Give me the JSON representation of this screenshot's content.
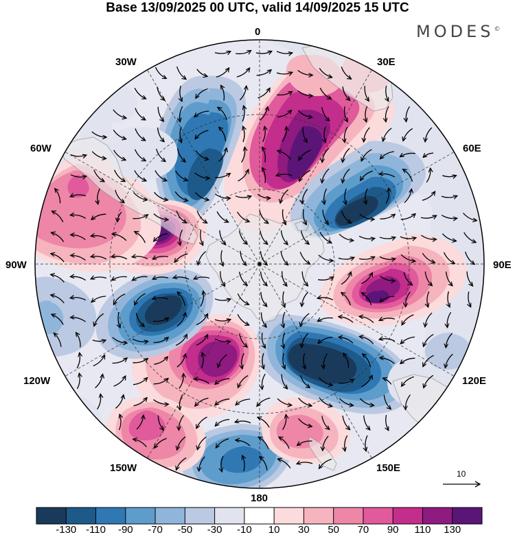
{
  "title": "Base 13/09/2025 00 UTC, valid 14/09/2025 15 UTC",
  "brand": {
    "name": "MODES",
    "mark": "©"
  },
  "longitude_labels": {
    "lon_0": "0",
    "lon_30e": "30E",
    "lon_60e": "60E",
    "lon_90e": "90E",
    "lon_120e": "120E",
    "lon_150e": "150E",
    "lon_180": "180",
    "lon_150w": "150W",
    "lon_120w": "120W",
    "lon_90w": "90W",
    "lon_60w": "60W",
    "lon_30w": "30W"
  },
  "reference_vector": {
    "label": "10"
  },
  "colorbar": {
    "colors": [
      "#1a3a5c",
      "#1d5a8a",
      "#2f78b3",
      "#5e9ccb",
      "#8fb6da",
      "#bcc9e2",
      "#e1e3ef",
      "#ffffff",
      "#fbdbdc",
      "#f6b4bf",
      "#ee86a8",
      "#e05a9c",
      "#c32d8c",
      "#8f1a80",
      "#5a1577"
    ],
    "ticks": [
      "-130",
      "-110",
      "-90",
      "-70",
      "-50",
      "-30",
      "-10",
      "10",
      "30",
      "50",
      "70",
      "90",
      "110",
      "130"
    ]
  },
  "colors": {
    "land": "#ebebeb",
    "coast": "#7a7a7a",
    "grid": "#333333"
  }
}
